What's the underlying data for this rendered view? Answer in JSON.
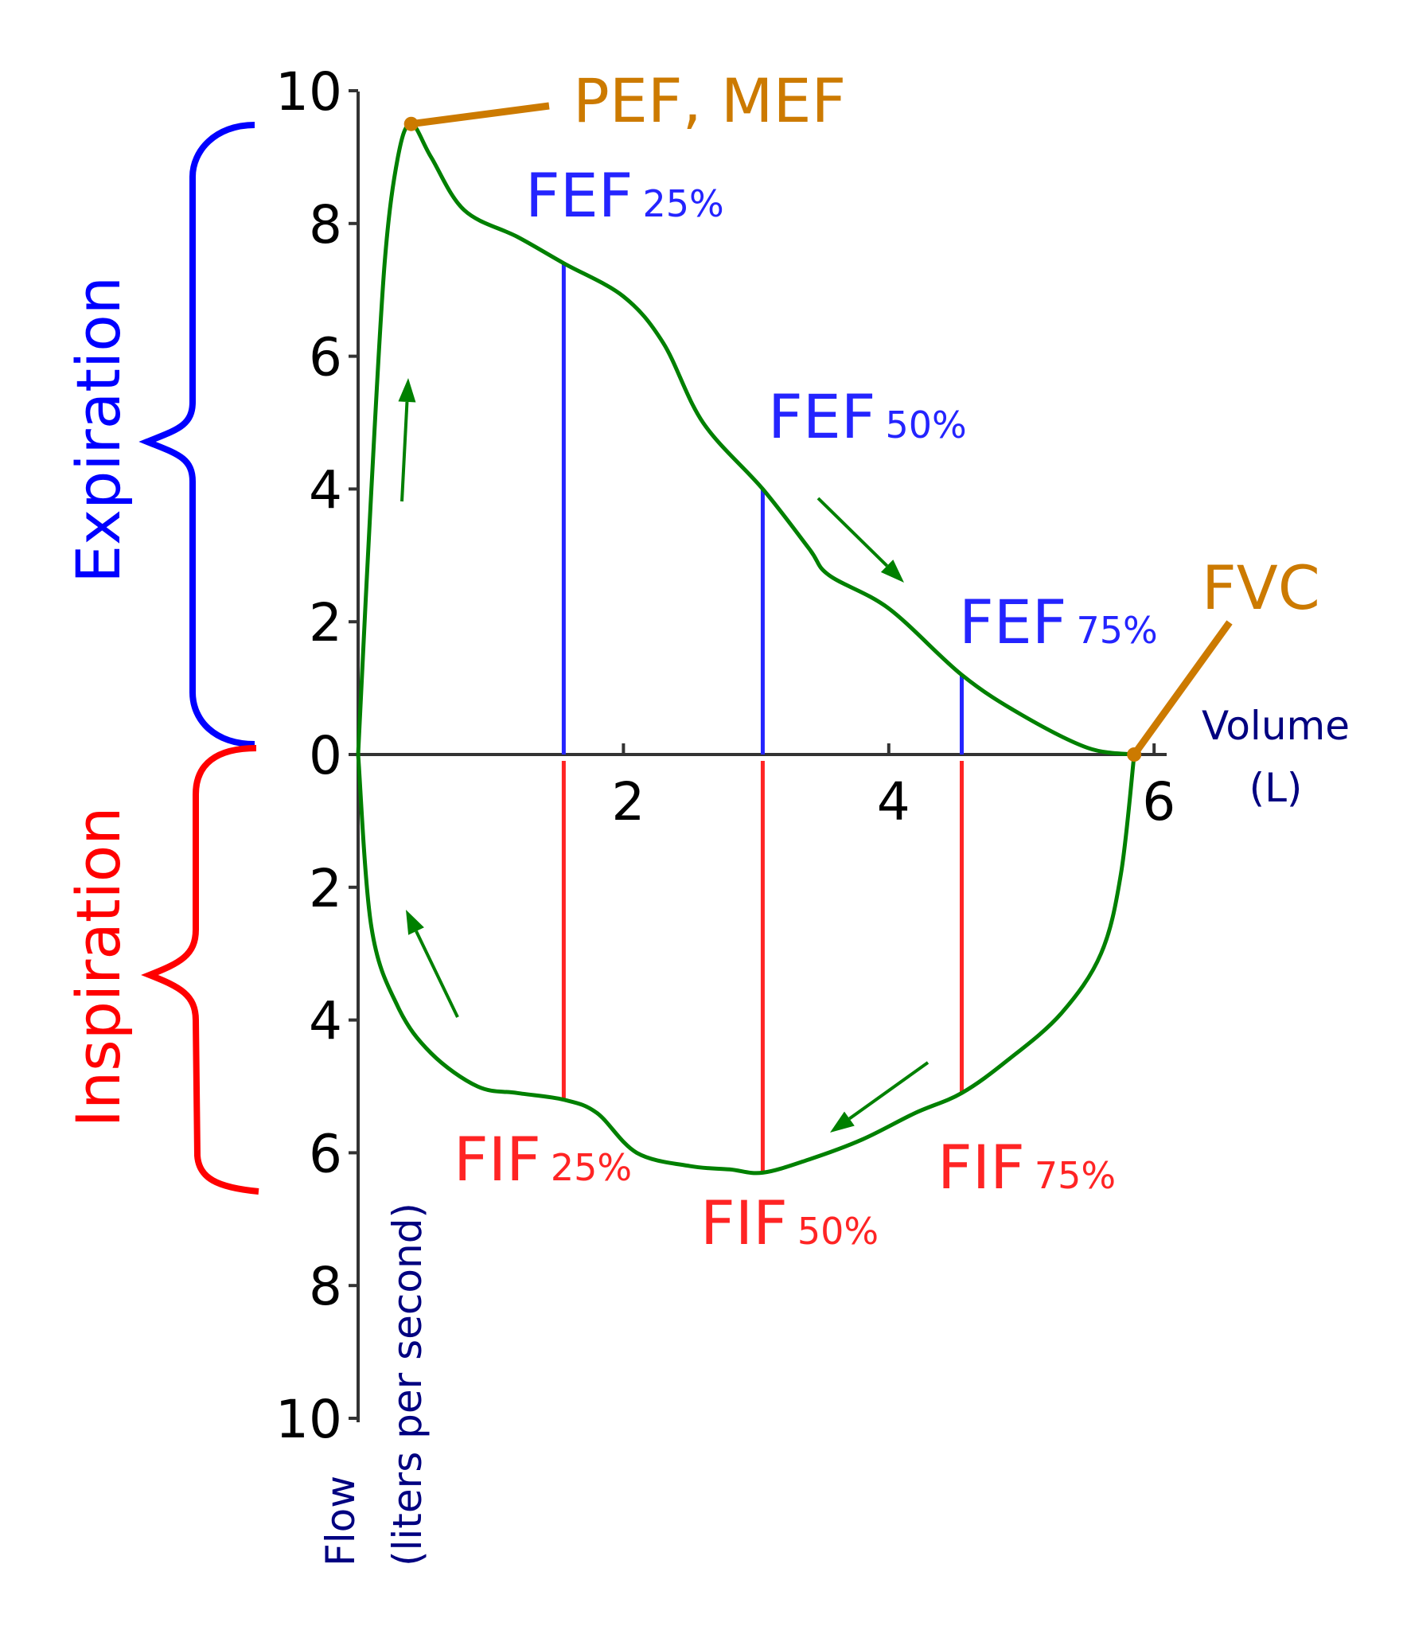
{
  "chart_data": {
    "type": "line",
    "x_axis": {
      "label": "Volume",
      "unit": "(L)",
      "ticks": [
        2,
        4,
        6
      ],
      "range": [
        0,
        6
      ]
    },
    "y_axis": {
      "label": "Flow",
      "unit": "(liters per second)",
      "ticks_expiration": [
        10,
        8,
        6,
        4,
        2,
        0
      ],
      "ticks_inspiration": [
        2,
        4,
        6,
        8,
        10
      ],
      "range": [
        -10,
        10
      ]
    },
    "sections": [
      {
        "name": "Expiration",
        "color": "#0000ff"
      },
      {
        "name": "Inspiration",
        "color": "#ff0000"
      }
    ],
    "curve": {
      "color": "#008000",
      "expiration": [
        [
          0.0,
          0.0
        ],
        [
          0.1,
          4.0
        ],
        [
          0.2,
          7.4
        ],
        [
          0.3,
          9.0
        ],
        [
          0.4,
          9.5
        ],
        [
          0.55,
          9.0
        ],
        [
          0.8,
          8.2
        ],
        [
          1.2,
          7.8
        ],
        [
          1.55,
          7.4
        ],
        [
          2.0,
          6.9
        ],
        [
          2.3,
          6.2
        ],
        [
          2.6,
          5.0
        ],
        [
          3.05,
          4.0
        ],
        [
          3.4,
          3.1
        ],
        [
          3.55,
          2.7
        ],
        [
          4.0,
          2.2
        ],
        [
          4.55,
          1.2
        ],
        [
          5.0,
          0.6
        ],
        [
          5.5,
          0.1
        ],
        [
          5.85,
          0.0
        ]
      ],
      "inspiration": [
        [
          0.0,
          0.0
        ],
        [
          0.1,
          -2.6
        ],
        [
          0.3,
          -3.8
        ],
        [
          0.55,
          -4.5
        ],
        [
          0.9,
          -5.0
        ],
        [
          1.2,
          -5.1
        ],
        [
          1.55,
          -5.2
        ],
        [
          1.8,
          -5.4
        ],
        [
          2.1,
          -6.0
        ],
        [
          2.5,
          -6.2
        ],
        [
          2.8,
          -6.25
        ],
        [
          3.05,
          -6.3
        ],
        [
          3.4,
          -6.1
        ],
        [
          3.8,
          -5.8
        ],
        [
          4.2,
          -5.4
        ],
        [
          4.55,
          -5.1
        ],
        [
          4.9,
          -4.6
        ],
        [
          5.3,
          -3.9
        ],
        [
          5.6,
          -3.0
        ],
        [
          5.75,
          -1.8
        ],
        [
          5.85,
          0.0
        ]
      ]
    },
    "markers_expiration": [
      {
        "label": "FEF",
        "sub": "25%",
        "volume": 1.55,
        "flow": 7.4,
        "color": "#2424ff"
      },
      {
        "label": "FEF",
        "sub": "50%",
        "volume": 3.05,
        "flow": 4.0,
        "color": "#2424ff"
      },
      {
        "label": "FEF",
        "sub": "75%",
        "volume": 4.55,
        "flow": 1.2,
        "color": "#2424ff"
      }
    ],
    "markers_inspiration": [
      {
        "label": "FIF",
        "sub": "25%",
        "volume": 1.55,
        "flow": -5.2,
        "color": "#ff2424"
      },
      {
        "label": "FIF",
        "sub": "50%",
        "volume": 3.05,
        "flow": -6.3,
        "color": "#ff2424"
      },
      {
        "label": "FIF",
        "sub": "75%",
        "volume": 4.55,
        "flow": -5.1,
        "color": "#ff2424"
      }
    ],
    "annotations": [
      {
        "label": "PEF, MEF",
        "volume": 0.4,
        "flow": 9.5,
        "color": "#cc7a00"
      },
      {
        "label": "FVC",
        "volume": 5.85,
        "flow": 0.0,
        "color": "#cc7a00"
      }
    ]
  }
}
